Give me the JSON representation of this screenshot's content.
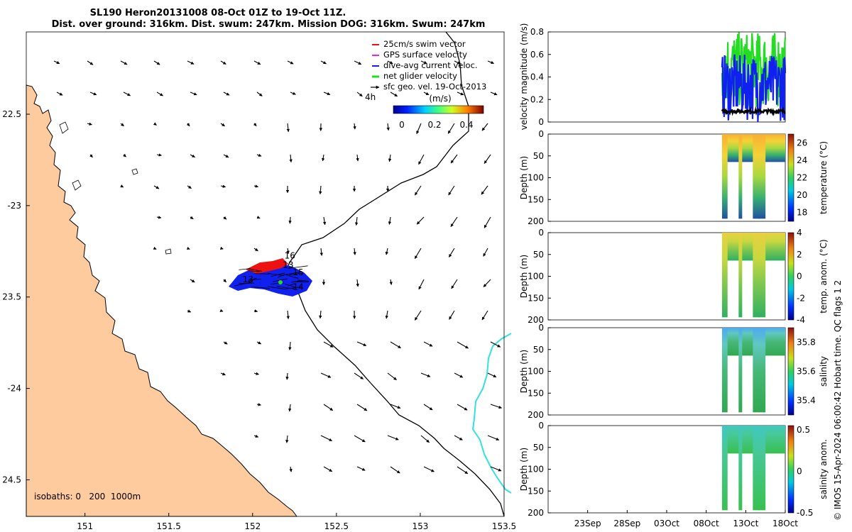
{
  "title": {
    "line1": "SL190 Heron20131008 08-Oct 01Z to 19-Oct 11Z.",
    "line2": "Dist. over ground: 316km. Dist. swum: 247km. Mission DOG: 316km. Swum: 247km"
  },
  "credit": "© IMOS 15-Apr-2024 06:00:42 Hobart time. QC flags 1  2",
  "colors": {
    "land": "#fdcb9d",
    "track": "#000000",
    "isobath": "#35e0e0",
    "swim": "#ee1111",
    "current": "#1020ee",
    "net": "#22dd22"
  },
  "chart_data": [
    {
      "type": "map",
      "xlim": [
        150.65,
        153.5
      ],
      "ylim": [
        -24.7,
        -22.05
      ],
      "xticks": [
        151,
        151.5,
        152,
        152.5,
        153,
        153.5
      ],
      "xtick_labels": [
        "151",
        "151.5",
        "152",
        "152.5",
        "153",
        "153.5"
      ],
      "yticks": [
        -22.5,
        -23,
        -23.5,
        -24,
        -24.5
      ],
      "ytick_labels": [
        "22.5",
        "-23",
        "23.5",
        "-24",
        "24.5"
      ],
      "legend": {
        "placement": "top-right",
        "items": [
          {
            "label": "25cm/s swim vector",
            "color": "#ee1111"
          },
          {
            "label": "GPS surface velocity",
            "color": "#ee22ee"
          },
          {
            "label": "dive-avg current veloc.",
            "color": "#1020ee"
          },
          {
            "label": "net glider velocity",
            "color": "#22dd22"
          },
          {
            "label": "sfc geo. vel. 19-Oct-2013",
            "color": "#000000"
          }
        ]
      },
      "colorbar": {
        "label": "(m/s)",
        "ticks": [
          "0",
          "0.2",
          "0.4"
        ],
        "range": [
          -0.05,
          0.5
        ]
      },
      "duration_label": "4h",
      "isobaths_label": "isobaths: 0   200  1000m",
      "day_labels": [
        {
          "text": "16",
          "lon": 152.19,
          "lat": -23.29
        },
        {
          "text": "13",
          "lon": 152.18,
          "lat": -23.34
        },
        {
          "text": "15",
          "lon": 152.24,
          "lat": -23.38
        },
        {
          "text": "14",
          "lon": 152.24,
          "lat": -23.46
        },
        {
          "text": "13",
          "lon": 151.94,
          "lat": -23.42
        }
      ]
    },
    {
      "type": "line",
      "ylabel": "velocity magnitude (m/s)",
      "ylim": [
        0,
        0.8
      ],
      "yticks": [
        "0",
        "0.2",
        "0.4",
        "0.6",
        "0.8"
      ],
      "xlim_days": [
        0,
        30
      ],
      "data_start_day": 22,
      "data_end_day": 30,
      "series": [
        {
          "name": "net glider velocity",
          "color": "#22dd22",
          "typical_range": [
            0.1,
            0.8
          ]
        },
        {
          "name": "dive-avg current veloc.",
          "color": "#1020ee",
          "typical_range": [
            0.0,
            0.6
          ]
        },
        {
          "name": "sfc geo. vel.",
          "color": "#000000",
          "typical_range": [
            0.08,
            0.11
          ]
        }
      ]
    },
    {
      "type": "heatmap",
      "ylabel": "Depth (m)",
      "yticks": [
        "0",
        "50",
        "100",
        "150",
        "200"
      ],
      "cbar_label": "temperature (°C)",
      "cbar_ticks": [
        "18",
        "20",
        "22",
        "24",
        "26"
      ],
      "crange": [
        17,
        27
      ]
    },
    {
      "type": "heatmap",
      "ylabel": "Depth (m)",
      "yticks": [
        "0",
        "50",
        "100",
        "150",
        "200"
      ],
      "cbar_label": "temp. anom. (°C)",
      "cbar_ticks": [
        "-4",
        "-2",
        "0",
        "2",
        "4"
      ],
      "crange": [
        -4,
        4
      ]
    },
    {
      "type": "heatmap",
      "ylabel": "Depth (m)",
      "yticks": [
        "0",
        "50",
        "100",
        "150",
        "200"
      ],
      "cbar_label": "salinity",
      "cbar_ticks": [
        "35.4",
        "35.6",
        "35.8"
      ],
      "crange": [
        35.3,
        35.9
      ]
    },
    {
      "type": "heatmap",
      "ylabel": "Depth (m)",
      "yticks": [
        "0",
        "50",
        "100",
        "150",
        "200"
      ],
      "cbar_label": "salinity anom.",
      "cbar_ticks": [
        "-0.5",
        "0",
        "0.5"
      ],
      "crange": [
        -0.5,
        0.55
      ]
    },
    {
      "type": "time_axis",
      "xticks": [
        {
          "label": "23Sep",
          "day": 5
        },
        {
          "label": "28Sep",
          "day": 10
        },
        {
          "label": "03Oct",
          "day": 15
        },
        {
          "label": "08Oct",
          "day": 20
        },
        {
          "label": "13Oct",
          "day": 25
        },
        {
          "label": "18Oct",
          "day": 30
        }
      ]
    }
  ]
}
